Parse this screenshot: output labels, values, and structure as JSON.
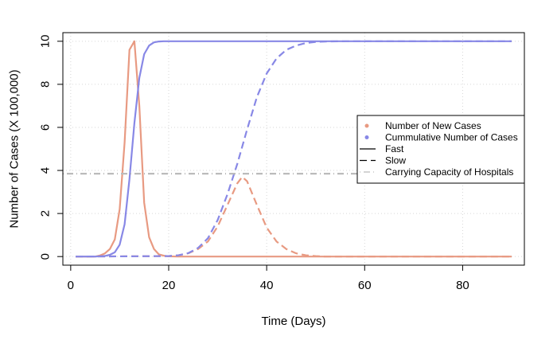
{
  "chart_data": {
    "type": "line",
    "title": "",
    "xlabel": "Time (Days)",
    "ylabel": "Number of Cases (X 100,000)",
    "xlim": [
      -1.6,
      92.6
    ],
    "ylim": [
      -0.4,
      10.4
    ],
    "xticks": [
      0,
      20,
      40,
      60,
      80
    ],
    "yticks": [
      0,
      2,
      4,
      6,
      8,
      10
    ],
    "grid": true,
    "legend_position": "right",
    "legend": [
      {
        "label": "Number of New Cases",
        "kind": "point",
        "color": "#E89A82"
      },
      {
        "label": "Cummulative Number of Cases",
        "kind": "point",
        "color": "#8888E6"
      },
      {
        "label": "Fast",
        "kind": "solid",
        "color": "#000000"
      },
      {
        "label": "Slow",
        "kind": "dashed",
        "color": "#000000"
      },
      {
        "label": "Carrying Capacity of Hospitals",
        "kind": "dotdash",
        "color": "#BBBBBB"
      }
    ],
    "colors": {
      "new_cases": "#E89A82",
      "cumulative": "#8888E6",
      "capacity": "#BBBBBB",
      "grid": "#D6D6D6"
    },
    "series": [
      {
        "name": "Number of New Cases",
        "variant": "Fast",
        "color": "#E89A82",
        "style": "solid",
        "x": [
          1,
          5,
          6,
          7,
          8,
          9,
          10,
          11,
          12,
          13,
          14,
          15,
          16,
          17,
          18,
          19,
          20,
          22,
          90
        ],
        "y": [
          0,
          0,
          0.05,
          0.15,
          0.35,
          0.8,
          2.2,
          5.3,
          9.6,
          10.0,
          7.0,
          2.5,
          0.9,
          0.35,
          0.1,
          0.04,
          0.01,
          0,
          0
        ]
      },
      {
        "name": "Cummulative Number of Cases",
        "variant": "Fast",
        "color": "#8888E6",
        "style": "solid",
        "x": [
          1,
          5,
          7,
          8,
          9,
          10,
          11,
          12,
          13,
          14,
          15,
          16,
          17,
          18,
          19,
          20,
          90
        ],
        "y": [
          0,
          0,
          0.03,
          0.08,
          0.2,
          0.55,
          1.5,
          3.6,
          6.2,
          8.3,
          9.4,
          9.8,
          9.95,
          9.99,
          10.0,
          10.0,
          10.0
        ]
      },
      {
        "name": "Number of New Cases",
        "variant": "Slow",
        "color": "#E89A82",
        "style": "dashed",
        "x": [
          1,
          20,
          22,
          24,
          26,
          28,
          30,
          32,
          34,
          35,
          36,
          38,
          40,
          42,
          44,
          46,
          48,
          50,
          52,
          90
        ],
        "y": [
          0,
          0.02,
          0.06,
          0.15,
          0.35,
          0.7,
          1.4,
          2.4,
          3.4,
          3.7,
          3.5,
          2.4,
          1.35,
          0.7,
          0.35,
          0.15,
          0.06,
          0.02,
          0,
          0
        ]
      },
      {
        "name": "Cummulative Number of Cases",
        "variant": "Slow",
        "color": "#8888E6",
        "style": "dashed",
        "x": [
          1,
          20,
          22,
          24,
          26,
          28,
          30,
          32,
          34,
          36,
          38,
          40,
          42,
          44,
          46,
          48,
          50,
          52,
          56,
          60,
          90
        ],
        "y": [
          0,
          0.02,
          0.06,
          0.16,
          0.4,
          0.85,
          1.7,
          2.9,
          4.3,
          5.9,
          7.4,
          8.5,
          9.2,
          9.6,
          9.8,
          9.92,
          9.97,
          9.99,
          10.0,
          10.0,
          10.0
        ]
      },
      {
        "name": "Carrying Capacity of Hospitals",
        "color": "#BBBBBB",
        "style": "dotdash",
        "x": [
          -1.6,
          92.6
        ],
        "y": [
          3.85,
          3.85
        ]
      }
    ]
  }
}
